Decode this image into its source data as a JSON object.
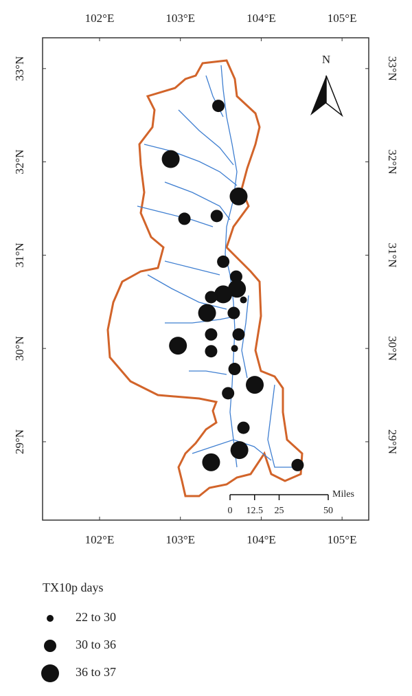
{
  "map": {
    "xlim": [
      101.295,
      105.33
    ],
    "ylim": [
      28.16,
      33.33
    ],
    "xticks": [
      {
        "value": 102,
        "label": "102°E"
      },
      {
        "value": 103,
        "label": "103°E"
      },
      {
        "value": 104,
        "label": "104°E"
      },
      {
        "value": 105,
        "label": "105°E"
      }
    ],
    "yticks": [
      {
        "value": 29,
        "label": "29°N"
      },
      {
        "value": 30,
        "label": "30°N"
      },
      {
        "value": 31,
        "label": "31°N"
      },
      {
        "value": 32,
        "label": "32°N"
      },
      {
        "value": 33,
        "label": "33°N"
      }
    ],
    "north_label": "N",
    "scale_bar": {
      "unit": "Miles",
      "ticks": [
        0,
        12.5,
        25,
        50
      ]
    },
    "stations": [
      {
        "lon": 103.47,
        "lat": 32.6,
        "class": 1
      },
      {
        "lon": 102.88,
        "lat": 32.03,
        "class": 2
      },
      {
        "lon": 103.72,
        "lat": 31.63,
        "class": 2
      },
      {
        "lon": 103.05,
        "lat": 31.39,
        "class": 1
      },
      {
        "lon": 103.45,
        "lat": 31.42,
        "class": 1
      },
      {
        "lon": 103.53,
        "lat": 30.93,
        "class": 1
      },
      {
        "lon": 103.69,
        "lat": 30.77,
        "class": 1
      },
      {
        "lon": 103.7,
        "lat": 30.64,
        "class": 2
      },
      {
        "lon": 103.53,
        "lat": 30.58,
        "class": 2
      },
      {
        "lon": 103.38,
        "lat": 30.55,
        "class": 1
      },
      {
        "lon": 103.78,
        "lat": 30.52,
        "class": 0
      },
      {
        "lon": 103.33,
        "lat": 30.38,
        "class": 2
      },
      {
        "lon": 103.66,
        "lat": 30.38,
        "class": 1
      },
      {
        "lon": 103.38,
        "lat": 30.15,
        "class": 1
      },
      {
        "lon": 103.72,
        "lat": 30.15,
        "class": 1
      },
      {
        "lon": 102.97,
        "lat": 30.03,
        "class": 2
      },
      {
        "lon": 103.38,
        "lat": 29.97,
        "class": 1
      },
      {
        "lon": 103.67,
        "lat": 30.0,
        "class": 0
      },
      {
        "lon": 103.67,
        "lat": 29.78,
        "class": 1
      },
      {
        "lon": 103.92,
        "lat": 29.61,
        "class": 2
      },
      {
        "lon": 103.59,
        "lat": 29.52,
        "class": 1
      },
      {
        "lon": 103.78,
        "lat": 29.15,
        "class": 1
      },
      {
        "lon": 103.73,
        "lat": 28.91,
        "class": 2
      },
      {
        "lon": 103.38,
        "lat": 28.78,
        "class": 2
      },
      {
        "lon": 104.45,
        "lat": 28.75,
        "class": 1
      }
    ]
  },
  "legend": {
    "title": "TX10p days",
    "items": [
      "22 to 30",
      "30 to 36",
      "36 to 37"
    ]
  }
}
